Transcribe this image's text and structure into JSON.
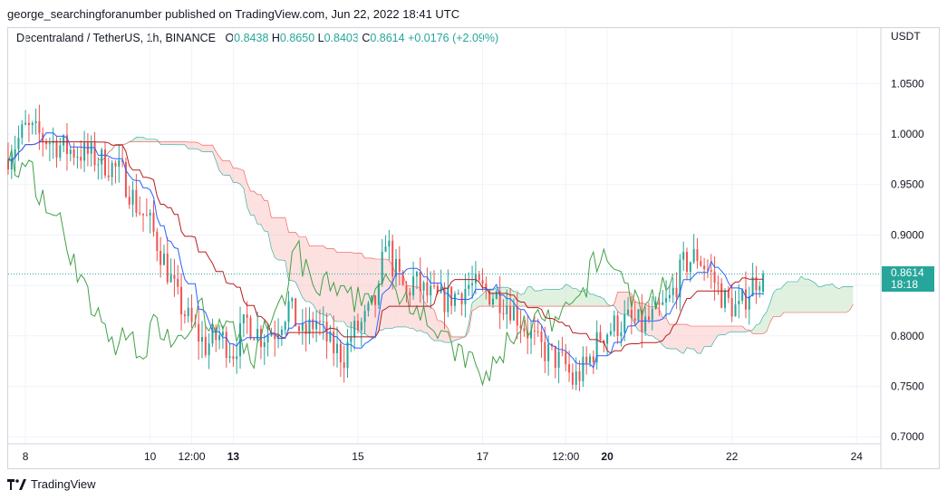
{
  "header": {
    "publish_line": "george_searchingforanumber published on TradingView.com, Jun 22, 2022 18:41 UTC"
  },
  "legend": {
    "symbol": "Decentraland / TetherUS, 1h, BINANCE",
    "open_label": "O",
    "open": "0.8438",
    "high_label": "H",
    "high": "0.8650",
    "low_label": "L",
    "low": "0.8403",
    "close_label": "C",
    "close": "0.8614",
    "change": "+0.0176 (+2.09%)"
  },
  "axis": {
    "currency": "USDT"
  },
  "price_tag": {
    "price": "0.8614",
    "countdown": "18:18"
  },
  "brand": {
    "name": "TradingView"
  },
  "colors": {
    "up": "#26a69a",
    "down": "#ef5350",
    "conversion": "#2962ff",
    "base": "#b71c1c",
    "lagging": "#43a047",
    "cloud_up": "#a5d6a7",
    "cloud_down": "#f7a9a7"
  },
  "chart_data": {
    "type": "candlestick",
    "indicator": "Ichimoku Cloud",
    "y_ticks": [
      1.05,
      1.0,
      0.95,
      0.9,
      0.85,
      0.8,
      0.75,
      0.7
    ],
    "y_tick_labels": [
      "1.0500",
      "1.0000",
      "0.9500",
      "0.9000",
      "",
      "0.8000",
      "0.7500",
      "0.7000"
    ],
    "ylim": [
      0.693,
      1.088
    ],
    "x_ticks": [
      {
        "label": "8",
        "t": 5,
        "bold": false
      },
      {
        "label": "10",
        "t": 41,
        "bold": false
      },
      {
        "label": "12:00",
        "t": 53,
        "bold": false
      },
      {
        "label": "13",
        "t": 65,
        "bold": true
      },
      {
        "label": "15",
        "t": 101,
        "bold": false
      },
      {
        "label": "17",
        "t": 137,
        "bold": false
      },
      {
        "label": "12:00",
        "t": 161,
        "bold": false
      },
      {
        "label": "20",
        "t": 173,
        "bold": true
      },
      {
        "label": "22",
        "t": 209,
        "bold": false
      },
      {
        "label": "24",
        "t": 245,
        "bold": false
      }
    ],
    "grid": true,
    "last_price": 0.8614,
    "price_keyframes": [
      [
        0,
        0.975
      ],
      [
        6,
        1.005
      ],
      [
        12,
        0.995
      ],
      [
        18,
        0.985
      ],
      [
        24,
        0.98
      ],
      [
        30,
        0.97
      ],
      [
        34,
        0.96
      ],
      [
        38,
        0.93
      ],
      [
        42,
        0.91
      ],
      [
        46,
        0.875
      ],
      [
        50,
        0.835
      ],
      [
        54,
        0.81
      ],
      [
        58,
        0.79
      ],
      [
        62,
        0.8
      ],
      [
        66,
        0.785
      ],
      [
        70,
        0.815
      ],
      [
        74,
        0.8
      ],
      [
        78,
        0.805
      ],
      [
        82,
        0.83
      ],
      [
        86,
        0.8
      ],
      [
        90,
        0.815
      ],
      [
        94,
        0.79
      ],
      [
        98,
        0.78
      ],
      [
        100,
        0.8
      ],
      [
        104,
        0.815
      ],
      [
        108,
        0.84
      ],
      [
        110,
        0.9
      ],
      [
        112,
        0.87
      ],
      [
        116,
        0.84
      ],
      [
        118,
        0.855
      ],
      [
        122,
        0.84
      ],
      [
        126,
        0.835
      ],
      [
        130,
        0.84
      ],
      [
        134,
        0.85
      ],
      [
        138,
        0.845
      ],
      [
        142,
        0.84
      ],
      [
        146,
        0.83
      ],
      [
        150,
        0.81
      ],
      [
        154,
        0.79
      ],
      [
        158,
        0.78
      ],
      [
        162,
        0.77
      ],
      [
        164,
        0.755
      ],
      [
        168,
        0.77
      ],
      [
        172,
        0.8
      ],
      [
        176,
        0.81
      ],
      [
        180,
        0.815
      ],
      [
        184,
        0.81
      ],
      [
        188,
        0.82
      ],
      [
        192,
        0.835
      ],
      [
        196,
        0.87
      ],
      [
        200,
        0.88
      ],
      [
        204,
        0.86
      ],
      [
        208,
        0.835
      ],
      [
        210,
        0.83
      ],
      [
        212,
        0.825
      ],
      [
        214,
        0.84
      ],
      [
        216,
        0.852
      ],
      [
        218,
        0.8614
      ]
    ],
    "last_candle": {
      "open": 0.8438,
      "high": 0.865,
      "low": 0.8403,
      "close": 0.8614
    }
  }
}
